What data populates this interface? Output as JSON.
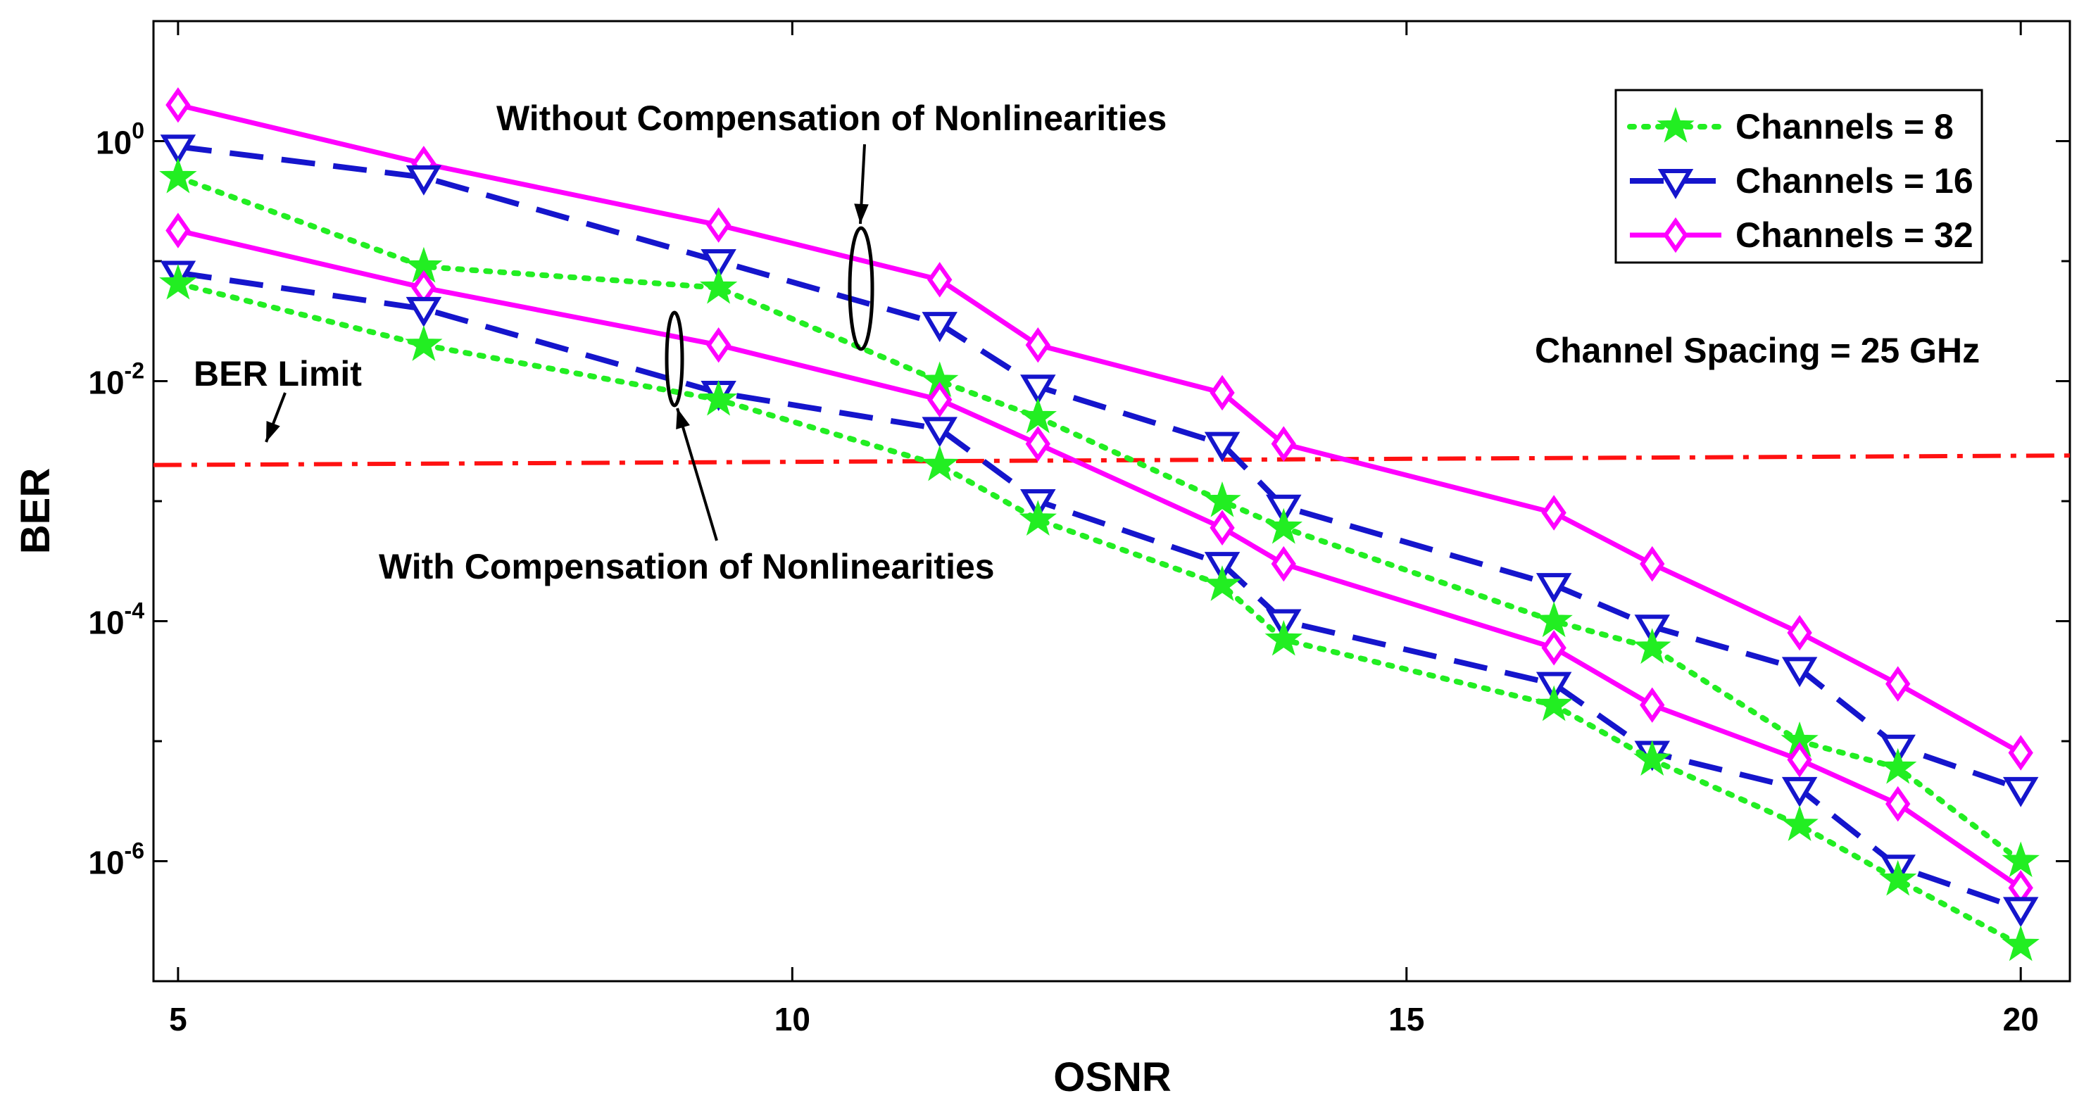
{
  "chart_data": {
    "type": "line",
    "xlabel": "OSNR",
    "ylabel": "BER",
    "y_scale": "log",
    "xlim": [
      4.8,
      20.4
    ],
    "ylim": [
      1e-07,
      10
    ],
    "x_ticks": [
      {
        "value": 5,
        "label": "5"
      },
      {
        "value": 10,
        "label": "10"
      },
      {
        "value": 15,
        "label": "15"
      },
      {
        "value": 20,
        "label": "20"
      }
    ],
    "y_ticks": [
      {
        "value": 1,
        "base": "10",
        "exp": "0"
      },
      {
        "value": 0.01,
        "base": "10",
        "exp": "-2"
      },
      {
        "value": 0.0001,
        "base": "10",
        "exp": "-4"
      },
      {
        "value": 1e-06,
        "base": "10",
        "exp": "-6"
      }
    ],
    "grid": false,
    "legend_position": "top-right",
    "legend": [
      {
        "label": "Channels = 8",
        "color": "#22ee22",
        "marker": "star",
        "dash": "dotted"
      },
      {
        "label": "Channels = 16",
        "color": "#1515cc",
        "marker": "triangle-down",
        "dash": "dashed"
      },
      {
        "label": "Channels = 32",
        "color": "#ff00ff",
        "marker": "diamond",
        "dash": "solid"
      }
    ],
    "annotations": {
      "without": "Without Compensation of Nonlinearities",
      "with": "With Compensation of Nonlinearities",
      "ber_limit": "BER Limit",
      "spacing": "Channel Spacing = 25 GHz"
    },
    "ber_limit_line": {
      "x": [
        5,
        20.4
      ],
      "y": [
        0.002,
        0.0024
      ],
      "color": "#ff1111"
    },
    "x": [
      5,
      7,
      9.4,
      11.2,
      12,
      13.5,
      14,
      16.2,
      17,
      18.2,
      19,
      20
    ],
    "series": [
      {
        "group": "without",
        "channels": 32,
        "color": "#ff00ff",
        "marker": "diamond",
        "dash": "solid",
        "values": [
          2.0,
          0.65,
          0.2,
          0.07,
          0.02,
          0.008,
          0.003,
          0.0008,
          0.0003,
          8e-05,
          3e-05,
          8e-06
        ]
      },
      {
        "group": "without",
        "channels": 16,
        "color": "#1515cc",
        "marker": "triangle-down",
        "dash": "dashed",
        "values": [
          0.9,
          0.5,
          0.1,
          0.03,
          0.009,
          0.003,
          0.0009,
          0.0002,
          9e-05,
          4e-05,
          9e-06,
          4e-06
        ]
      },
      {
        "group": "without",
        "channels": 8,
        "color": "#22ee22",
        "marker": "star",
        "dash": "dotted",
        "values": [
          0.5,
          0.09,
          0.06,
          0.01,
          0.005,
          0.001,
          0.0006,
          0.0001,
          6e-05,
          1e-05,
          6e-06,
          1e-06
        ]
      },
      {
        "group": "with",
        "channels": 32,
        "color": "#ff00ff",
        "marker": "diamond",
        "dash": "solid",
        "values": [
          0.18,
          0.06,
          0.02,
          0.007,
          0.003,
          0.0006,
          0.0003,
          6e-05,
          2e-05,
          7e-06,
          3e-06,
          6e-07
        ]
      },
      {
        "group": "with",
        "channels": 16,
        "color": "#1515cc",
        "marker": "triangle-down",
        "dash": "dashed",
        "values": [
          0.08,
          0.04,
          0.008,
          0.004,
          0.001,
          0.0003,
          0.0001,
          3e-05,
          8e-06,
          4e-06,
          9e-07,
          4e-07
        ]
      },
      {
        "group": "with",
        "channels": 8,
        "color": "#22ee22",
        "marker": "star",
        "dash": "dotted",
        "values": [
          0.065,
          0.02,
          0.007,
          0.002,
          0.0007,
          0.0002,
          7e-05,
          2e-05,
          7e-06,
          2e-06,
          7e-07,
          2e-07
        ]
      }
    ]
  }
}
